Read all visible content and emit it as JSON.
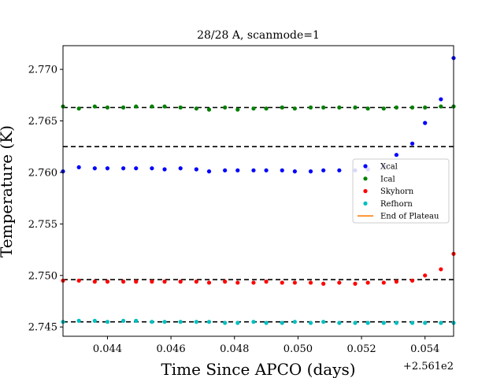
{
  "chart_data": {
    "type": "scatter",
    "title": "28/28 A, scanmode=1",
    "xlabel": "Time Since APCO (days)",
    "ylabel": "Temperature (K)",
    "offset_text": "+2.561e2",
    "xlim": [
      256.1426,
      256.1549
    ],
    "ylim": [
      2.7441,
      2.7723
    ],
    "x_ticks": [
      256.144,
      256.146,
      256.148,
      256.15,
      256.152,
      256.154
    ],
    "x_tick_labels": [
      "0.044",
      "0.046",
      "0.048",
      "0.050",
      "0.052",
      "0.054"
    ],
    "y_ticks": [
      2.745,
      2.75,
      2.755,
      2.76,
      2.765,
      2.77
    ],
    "y_tick_labels": [
      "2.745",
      "2.750",
      "2.755",
      "2.760",
      "2.765",
      "2.770"
    ],
    "x": [
      256.1426,
      256.1431,
      256.1436,
      256.144,
      256.1445,
      256.1449,
      256.1454,
      256.1458,
      256.1463,
      256.1468,
      256.1472,
      256.1477,
      256.1481,
      256.1486,
      256.149,
      256.1495,
      256.1499,
      256.1504,
      256.1508,
      256.1513,
      256.1518,
      256.1522,
      256.1527,
      256.1531,
      256.1536,
      256.154,
      256.1545,
      256.1549
    ],
    "series": [
      {
        "name": "Xcal",
        "color": "#0000ff",
        "values": [
          2.7601,
          2.7605,
          2.7604,
          2.7604,
          2.7604,
          2.7604,
          2.7604,
          2.7603,
          2.7604,
          2.7603,
          2.7601,
          2.7602,
          2.7602,
          2.7602,
          2.7602,
          2.7602,
          2.7601,
          2.7601,
          2.7602,
          2.7602,
          2.7602,
          2.7603,
          2.7606,
          2.7617,
          2.7628,
          2.7648,
          2.7671,
          2.7711
        ]
      },
      {
        "name": "Ical",
        "color": "#008000",
        "values": [
          2.7664,
          2.7662,
          2.7664,
          2.7663,
          2.7663,
          2.7664,
          2.7664,
          2.7664,
          2.7663,
          2.7662,
          2.7661,
          2.7663,
          2.7661,
          2.7662,
          2.7662,
          2.7663,
          2.7662,
          2.7663,
          2.7663,
          2.7663,
          2.7663,
          2.7662,
          2.7662,
          2.7663,
          2.7663,
          2.7663,
          2.7664,
          2.7664
        ]
      },
      {
        "name": "Skyhorn",
        "color": "#ff0000",
        "values": [
          2.7495,
          2.7495,
          2.7494,
          2.7494,
          2.7494,
          2.7494,
          2.7494,
          2.7494,
          2.7494,
          2.7494,
          2.7493,
          2.7494,
          2.7493,
          2.7493,
          2.7494,
          2.7493,
          2.7493,
          2.7493,
          2.7492,
          2.7493,
          2.7492,
          2.7493,
          2.7493,
          2.7494,
          2.7495,
          2.75,
          2.7506,
          2.7521
        ]
      },
      {
        "name": "Refhorn",
        "color": "#00bfbf",
        "values": [
          2.7455,
          2.7456,
          2.7456,
          2.7455,
          2.7456,
          2.7456,
          2.7455,
          2.7455,
          2.7455,
          2.7455,
          2.7455,
          2.7454,
          2.7454,
          2.7455,
          2.7454,
          2.7454,
          2.7455,
          2.7454,
          2.7455,
          2.7454,
          2.7454,
          2.7454,
          2.7454,
          2.7454,
          2.7454,
          2.7454,
          2.7454,
          2.7454
        ]
      }
    ],
    "hlines": [
      2.7663,
      2.7625,
      2.7496,
      2.7455
    ],
    "hline_color": "#000000",
    "legend": {
      "placement": "center-right",
      "entries": [
        {
          "label": "Xcal",
          "color": "#0000ff",
          "kind": "marker"
        },
        {
          "label": "Ical",
          "color": "#008000",
          "kind": "marker"
        },
        {
          "label": "Skyhorn",
          "color": "#ff0000",
          "kind": "marker"
        },
        {
          "label": "Refhorn",
          "color": "#00bfbf",
          "kind": "marker"
        },
        {
          "label": "End of Plateau",
          "color": "#ff7f0e",
          "kind": "line"
        }
      ]
    },
    "grid": false
  }
}
